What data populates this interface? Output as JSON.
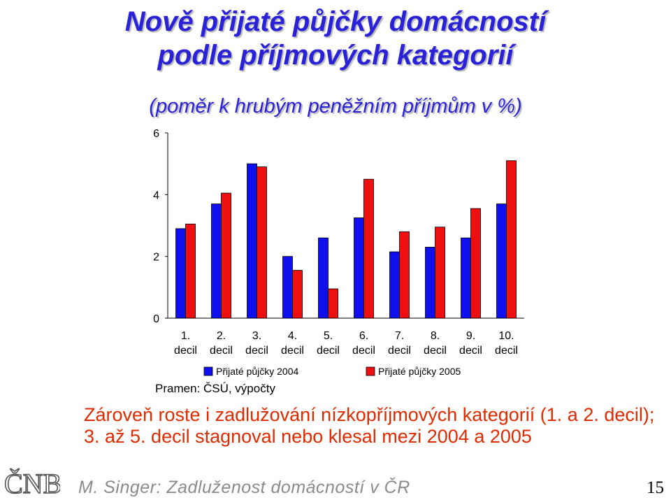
{
  "slide": {
    "title_line1": "Nově přijaté půjčky domácností",
    "title_line2": "podle příjmových kategorií",
    "subtitle": "(poměr k hrubým peněžním příjmům v %)",
    "source": "Pramen: ČSÚ, výpočty",
    "remark": "Zároveň roste i zadlužování nízkopříjmových kategorií (1. a 2. decil); 3. až 5. decil stagnoval nebo klesal mezi 2004 a 2005",
    "footer": "M. Singer: Zadluženost domácností v ČR",
    "page_number": "15",
    "logo_text": "ČNB"
  },
  "chart_data": {
    "type": "bar",
    "title": "",
    "xlabel": "",
    "ylabel": "",
    "categories": [
      [
        "1.",
        "decil"
      ],
      [
        "2.",
        "decil"
      ],
      [
        "3.",
        "decil"
      ],
      [
        "4.",
        "decil"
      ],
      [
        "5.",
        "decil"
      ],
      [
        "6.",
        "decil"
      ],
      [
        "7.",
        "decil"
      ],
      [
        "8.",
        "decil"
      ],
      [
        "9.",
        "decil"
      ],
      [
        "10.",
        "decil"
      ]
    ],
    "series": [
      {
        "name": "Přijaté půjčky 2004",
        "color": "#1010ee",
        "values": [
          2.9,
          3.7,
          5.0,
          2.0,
          2.6,
          3.25,
          2.15,
          2.3,
          2.6,
          3.7
        ]
      },
      {
        "name": "Přijaté půjčky 2005",
        "color": "#ee1010",
        "values": [
          3.05,
          4.05,
          4.9,
          1.55,
          0.95,
          4.5,
          2.8,
          2.95,
          3.55,
          5.1
        ]
      }
    ],
    "ylim": [
      0,
      6
    ],
    "yticks": [
      "0",
      "2",
      "4",
      "6"
    ],
    "grid": false,
    "legend_position": "bottom"
  }
}
